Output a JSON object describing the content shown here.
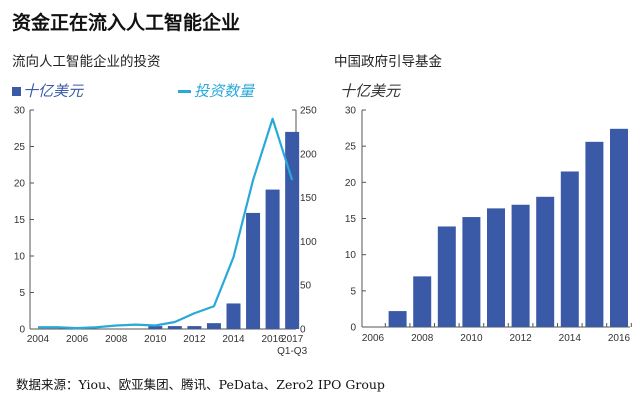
{
  "title": "资金正在流入人工智能企业",
  "source": "数据来源：Yiou、欧亚集团、腾讯、PeData、Zero2 IPO Group",
  "colors": {
    "bar": "#3a5aa8",
    "line": "#29a9d9"
  },
  "chart_data": [
    {
      "type": "bar+line",
      "title": "流向人工智能企业的投资",
      "legend": [
        {
          "name": "十亿美元",
          "marker": "square",
          "color": "#3a5aa8"
        },
        {
          "name": "投资数量",
          "marker": "line",
          "color": "#29a9d9"
        }
      ],
      "legend_placement": "top",
      "x": [
        2004,
        2005,
        2006,
        2007,
        2008,
        2009,
        2010,
        2011,
        2012,
        2013,
        2014,
        2015,
        2016,
        2017
      ],
      "x_tick_labels": [
        "2004",
        "2006",
        "2008",
        "2010",
        "2012",
        "2014",
        "2016",
        "2017"
      ],
      "x_extra_label": "Q1-Q3",
      "y_left": {
        "range": [
          0,
          30
        ],
        "ticks": [
          0,
          5,
          10,
          15,
          20,
          25,
          30
        ]
      },
      "y_right": {
        "range": [
          0,
          250
        ],
        "ticks": [
          0,
          50,
          100,
          150,
          200,
          250
        ]
      },
      "series": [
        {
          "name": "十亿美元",
          "type": "bar",
          "axis": "left",
          "values": [
            0,
            0,
            0,
            0,
            0,
            0,
            0.4,
            0.4,
            0.4,
            0.8,
            3.5,
            15.9,
            19.1,
            27.0
          ]
        },
        {
          "name": "投资数量",
          "type": "line",
          "axis": "right",
          "values": [
            2,
            2,
            1,
            2,
            4,
            5,
            4,
            8,
            18,
            26,
            82,
            170,
            240,
            170
          ]
        }
      ],
      "grid": false
    },
    {
      "type": "bar",
      "title": "中国政府引导基金",
      "ylabel": "十亿美元",
      "categories": [
        2006,
        2007,
        2008,
        2009,
        2010,
        2011,
        2012,
        2013,
        2014,
        2015,
        2016
      ],
      "x_tick_labels": [
        "2006",
        "2008",
        "2010",
        "2012",
        "2014",
        "2016"
      ],
      "values": [
        0,
        2.2,
        7.0,
        13.9,
        15.2,
        16.4,
        16.9,
        18.0,
        21.5,
        25.6,
        27.4
      ],
      "ylim": [
        0,
        30
      ],
      "y_ticks": [
        0,
        5,
        10,
        15,
        20,
        25,
        30
      ],
      "grid": false
    }
  ]
}
